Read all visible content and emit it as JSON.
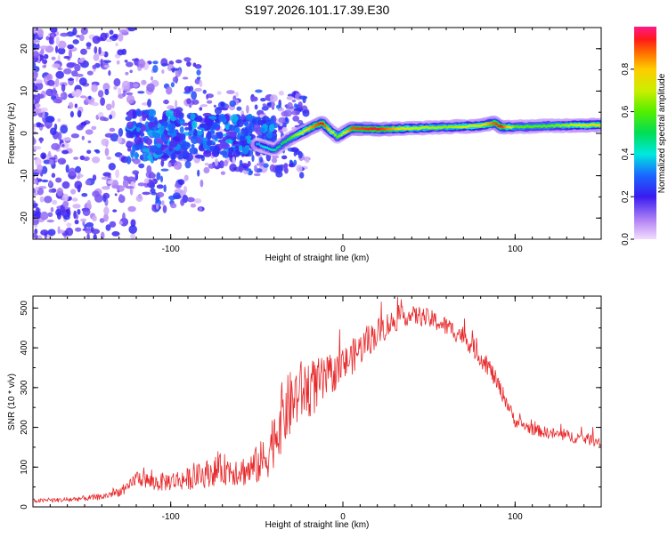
{
  "figure_title": "S197.2026.101.17.39.E30",
  "chart_data": [
    {
      "type": "heatmap",
      "title": "",
      "xlabel": "Height of straight line (km)",
      "ylabel": "Frequency (Hz)",
      "xlim": [
        -180,
        150
      ],
      "ylim": [
        -25,
        25
      ],
      "x_ticks": [
        -100,
        0,
        100
      ],
      "y_ticks": [
        -20,
        -10,
        0,
        10,
        20
      ],
      "colorbar": {
        "label": "Normalized spectral amplitude",
        "range": [
          0,
          1
        ],
        "ticks": [
          0.0,
          0.2,
          0.4,
          0.6,
          0.8
        ],
        "tick_labels": [
          "0.0",
          "0.2",
          "0.4",
          "0.6",
          "0.8"
        ]
      },
      "ridge": {
        "x": [
          -50,
          -40,
          -32,
          -25,
          -18,
          -12,
          -7,
          -3,
          0,
          5,
          20,
          40,
          60,
          80,
          88,
          92,
          100,
          120,
          150
        ],
        "y": [
          -2.5,
          -4,
          -1.5,
          0,
          1.5,
          2.5,
          0.5,
          -0.8,
          0,
          1.2,
          1.0,
          1.2,
          1.5,
          1.8,
          2.5,
          1.5,
          1.5,
          1.8,
          2.0
        ],
        "amp": [
          0.35,
          0.45,
          0.55,
          0.7,
          0.85,
          0.95,
          0.75,
          0.6,
          0.7,
          0.9,
          0.95,
          0.7,
          0.65,
          0.75,
          0.9,
          0.95,
          0.6,
          0.6,
          0.8
        ]
      },
      "scatter_note": "diffuse low-amplitude spectral energy at heights below about -40 km"
    },
    {
      "type": "line",
      "title": "",
      "xlabel": "Height of straight line (km)",
      "ylabel": "SNR (10 * v/v)",
      "xlim": [
        -180,
        150
      ],
      "ylim": [
        0,
        530
      ],
      "x_ticks": [
        -100,
        0,
        100
      ],
      "y_ticks": [
        0,
        100,
        200,
        300,
        400,
        500
      ],
      "series": [
        {
          "name": "SNR",
          "color": "#e8282a",
          "x": [
            -180,
            -160,
            -140,
            -125,
            -120,
            -110,
            -90,
            -70,
            -55,
            -45,
            -35,
            -25,
            -15,
            -5,
            5,
            15,
            25,
            35,
            45,
            55,
            70,
            85,
            95,
            100,
            110,
            120,
            135,
            150
          ],
          "y": [
            15,
            18,
            25,
            45,
            75,
            60,
            70,
            95,
            90,
            120,
            230,
            290,
            305,
            335,
            375,
            420,
            455,
            480,
            480,
            465,
            430,
            350,
            265,
            215,
            195,
            185,
            175,
            165
          ],
          "noise": [
            5,
            6,
            8,
            14,
            20,
            22,
            28,
            40,
            40,
            60,
            90,
            80,
            70,
            45,
            45,
            40,
            35,
            25,
            25,
            25,
            25,
            25,
            20,
            15,
            15,
            15,
            15,
            15
          ]
        }
      ]
    }
  ]
}
